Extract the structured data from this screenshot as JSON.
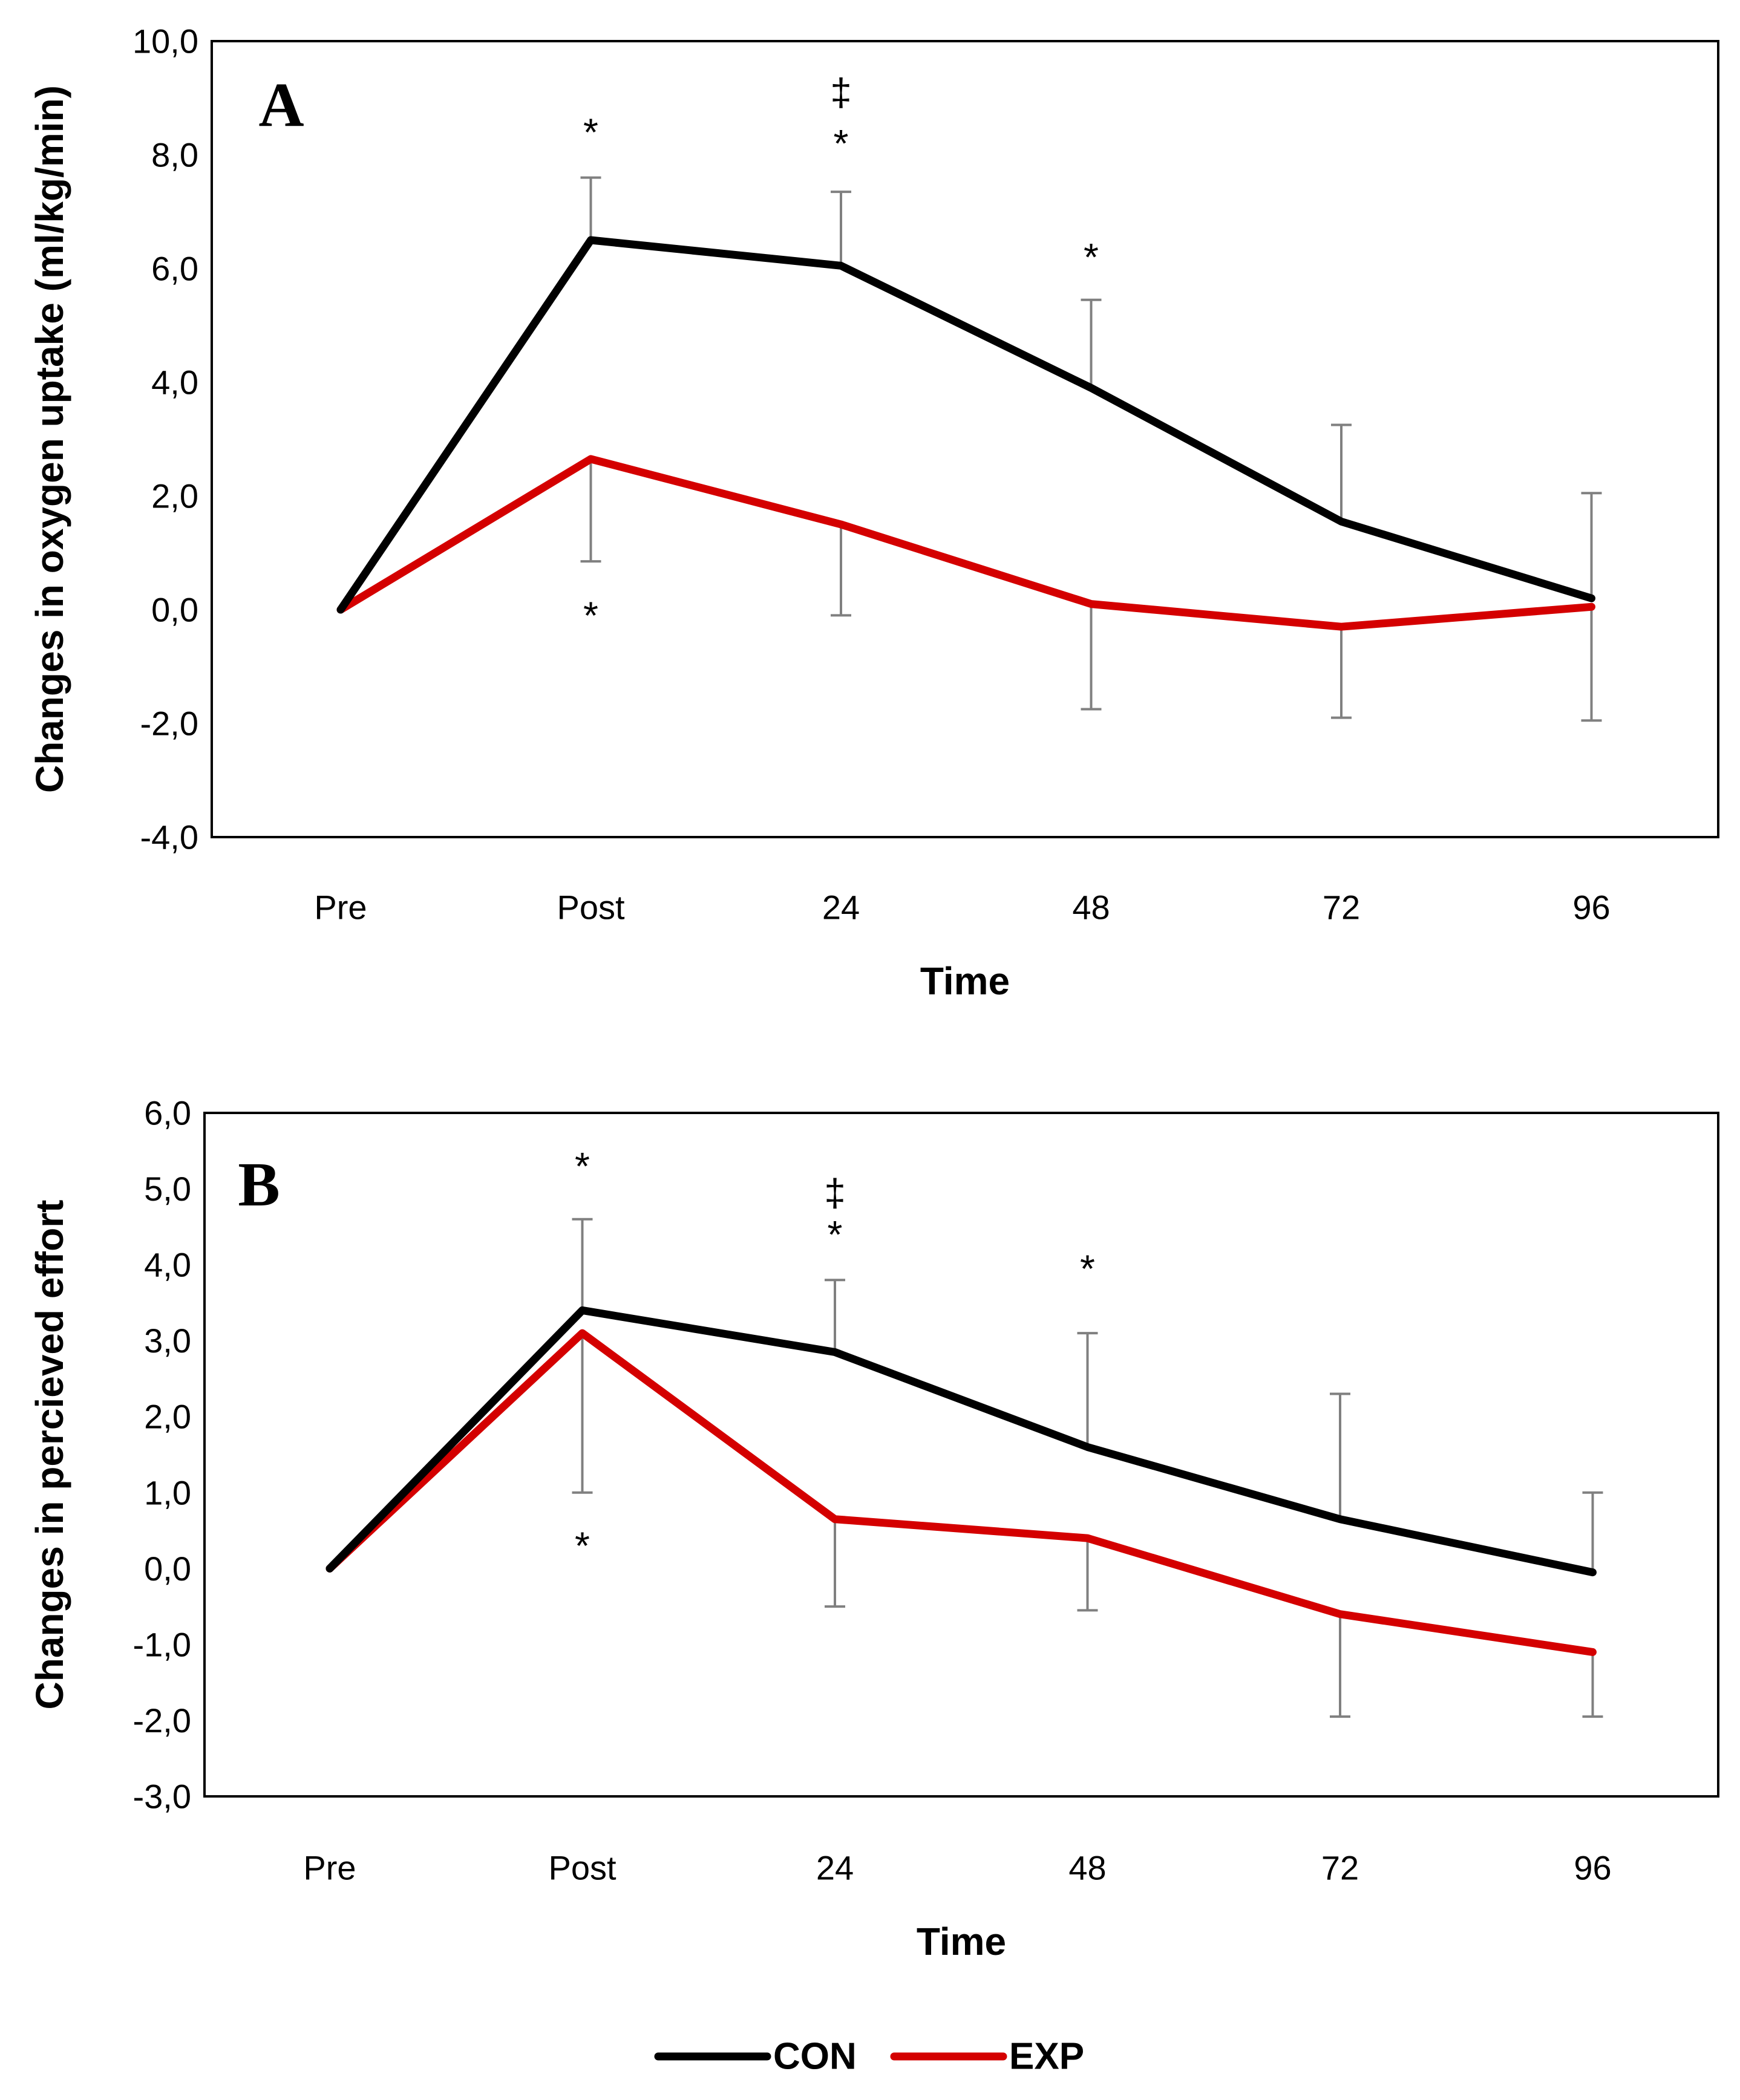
{
  "chart_data": [
    {
      "type": "line",
      "panel_label": "A",
      "categories": [
        "Pre",
        "Post",
        "24",
        "48",
        "72",
        "96"
      ],
      "xlabel": "Time",
      "ylabel": "Changes in oxygen uptake (ml/kg/min)",
      "ylim": [
        -4.0,
        10.0
      ],
      "yticks": [
        "-4,0",
        "-2,0",
        "0,0",
        "2,0",
        "4,0",
        "6,0",
        "8,0",
        "10,0"
      ],
      "ytick_values": [
        -4,
        -2,
        0,
        2,
        4,
        6,
        8,
        10
      ],
      "grid": false,
      "series": [
        {
          "name": "CON",
          "color": "#000000",
          "values": [
            0.0,
            6.5,
            6.05,
            3.9,
            1.55,
            0.2
          ],
          "error": [
            0.0,
            1.1,
            1.3,
            1.55,
            1.7,
            1.85
          ],
          "error_dir": "up"
        },
        {
          "name": "EXP",
          "color": "#d40000",
          "values": [
            0.0,
            2.65,
            1.5,
            0.1,
            -0.3,
            0.05
          ],
          "error": [
            0.0,
            1.8,
            1.6,
            1.85,
            1.6,
            2.0
          ],
          "error_dir": "down"
        }
      ],
      "annotations": [
        {
          "text": "*",
          "category": "Post",
          "y": 8.4
        },
        {
          "text": "‡",
          "category": "24",
          "y": 9.1
        },
        {
          "text": "*",
          "category": "24",
          "y": 8.2
        },
        {
          "text": "*",
          "category": "48",
          "y": 6.2
        },
        {
          "text": "*",
          "category": "Post",
          "y": -0.1
        }
      ]
    },
    {
      "type": "line",
      "panel_label": "B",
      "categories": [
        "Pre",
        "Post",
        "24",
        "48",
        "72",
        "96"
      ],
      "xlabel": "Time",
      "ylabel": "Changes in percieved effort",
      "ylim": [
        -3.0,
        6.0
      ],
      "yticks": [
        "-3,0",
        "-2,0",
        "-1,0",
        "0,0",
        "1,0",
        "2,0",
        "3,0",
        "4,0",
        "5,0",
        "6,0"
      ],
      "ytick_values": [
        -3,
        -2,
        -1,
        0,
        1,
        2,
        3,
        4,
        5,
        6
      ],
      "grid": false,
      "series": [
        {
          "name": "CON",
          "color": "#000000",
          "values": [
            0.0,
            3.4,
            2.85,
            1.6,
            0.65,
            -0.05
          ],
          "error": [
            0.0,
            1.2,
            0.95,
            1.5,
            1.65,
            1.05
          ],
          "error_dir": "up"
        },
        {
          "name": "EXP",
          "color": "#d40000",
          "values": [
            0.0,
            3.1,
            0.65,
            0.4,
            -0.6,
            -1.1
          ],
          "error": [
            0.0,
            2.1,
            1.15,
            0.95,
            1.35,
            0.85
          ],
          "error_dir": "down"
        }
      ],
      "annotations": [
        {
          "text": "*",
          "category": "Post",
          "y": 5.3
        },
        {
          "text": "‡",
          "category": "24",
          "y": 4.95
        },
        {
          "text": "*",
          "category": "24",
          "y": 4.4
        },
        {
          "text": "*",
          "category": "48",
          "y": 3.95
        },
        {
          "text": "*",
          "category": "Post",
          "y": 0.3
        }
      ]
    }
  ],
  "legend": {
    "position": "bottom-center",
    "items": [
      {
        "name": "CON",
        "color": "#000000"
      },
      {
        "name": "EXP",
        "color": "#d40000"
      }
    ]
  }
}
